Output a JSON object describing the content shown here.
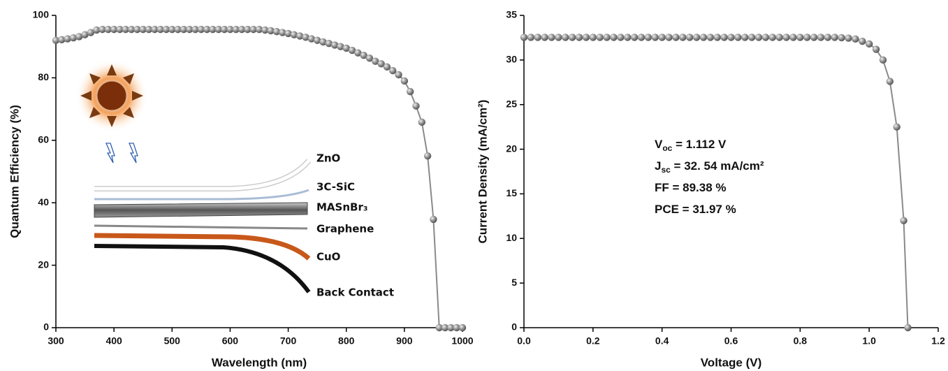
{
  "chart_data": [
    {
      "type": "line",
      "x_label": "Wavelength (nm)",
      "y_label": "Quantum Efficiency (%)",
      "color": "#8a8a8a",
      "x": [
        300,
        310,
        320,
        330,
        340,
        350,
        360,
        370,
        380,
        390,
        400,
        410,
        420,
        430,
        440,
        450,
        460,
        470,
        480,
        490,
        500,
        510,
        520,
        530,
        540,
        550,
        560,
        570,
        580,
        590,
        600,
        610,
        620,
        630,
        640,
        650,
        660,
        670,
        680,
        690,
        700,
        710,
        720,
        730,
        740,
        750,
        760,
        770,
        780,
        790,
        800,
        810,
        820,
        830,
        840,
        850,
        860,
        870,
        880,
        890,
        900,
        910,
        920,
        930,
        940,
        950,
        960,
        970,
        980,
        990,
        1000
      ],
      "values": [
        92,
        92.2,
        92.5,
        92.8,
        93.2,
        93.8,
        94.5,
        95.3,
        95.5,
        95.5,
        95.5,
        95.5,
        95.5,
        95.5,
        95.5,
        95.5,
        95.5,
        95.5,
        95.5,
        95.5,
        95.5,
        95.5,
        95.5,
        95.5,
        95.5,
        95.5,
        95.5,
        95.5,
        95.5,
        95.5,
        95.5,
        95.5,
        95.5,
        95.5,
        95.5,
        95.5,
        95.3,
        95.1,
        94.8,
        94.5,
        94.2,
        93.8,
        93.4,
        93,
        92.5,
        92,
        91.5,
        91,
        90.5,
        90,
        89.5,
        88.8,
        88,
        87.2,
        86.3,
        85.3,
        84.5,
        83.5,
        82.3,
        81,
        79,
        75.6,
        71,
        65.8,
        55,
        34.7,
        0,
        0,
        0,
        0,
        0
      ],
      "xlim": [
        300,
        1000
      ],
      "xticks": [
        300,
        400,
        500,
        600,
        700,
        800,
        900,
        1000
      ],
      "ylim": [
        0,
        100
      ],
      "yticks": [
        0,
        20,
        40,
        60,
        80,
        100
      ],
      "inset_labels": [
        "ZnO",
        "3C-SiC",
        "MASnBr₃",
        "Graphene",
        "CuO",
        "Back Contact"
      ]
    },
    {
      "type": "line",
      "x_label": "Voltage (V)",
      "y_label": "Current Density (mA/cm²)",
      "color": "#8a8a8a",
      "x": [
        0,
        0.02,
        0.04,
        0.06,
        0.08,
        0.1,
        0.12,
        0.14,
        0.16,
        0.18,
        0.2,
        0.22,
        0.24,
        0.26,
        0.28,
        0.3,
        0.32,
        0.34,
        0.36,
        0.38,
        0.4,
        0.42,
        0.44,
        0.46,
        0.48,
        0.5,
        0.52,
        0.54,
        0.56,
        0.58,
        0.6,
        0.62,
        0.64,
        0.66,
        0.68,
        0.7,
        0.72,
        0.74,
        0.76,
        0.78,
        0.8,
        0.82,
        0.84,
        0.86,
        0.88,
        0.9,
        0.92,
        0.94,
        0.96,
        0.98,
        1,
        1.02,
        1.04,
        1.06,
        1.08,
        1.1,
        1.112
      ],
      "values": [
        32.54,
        32.54,
        32.54,
        32.54,
        32.54,
        32.54,
        32.54,
        32.54,
        32.54,
        32.54,
        32.54,
        32.54,
        32.54,
        32.54,
        32.54,
        32.54,
        32.54,
        32.54,
        32.54,
        32.54,
        32.54,
        32.54,
        32.54,
        32.54,
        32.54,
        32.54,
        32.54,
        32.54,
        32.54,
        32.54,
        32.54,
        32.54,
        32.54,
        32.54,
        32.54,
        32.54,
        32.54,
        32.54,
        32.54,
        32.54,
        32.54,
        32.54,
        32.54,
        32.54,
        32.54,
        32.54,
        32.5,
        32.45,
        32.35,
        32.1,
        31.8,
        31.2,
        30,
        27.6,
        22.5,
        12,
        0
      ],
      "xlim": [
        0,
        1.2
      ],
      "xticks": [
        {
          "value": 0,
          "label": "0.0"
        },
        0.2,
        0.4,
        0.6,
        0.8,
        {
          "value": 1,
          "label": "1.0"
        },
        1.2
      ],
      "ylim": [
        0,
        35
      ],
      "yticks": [
        0,
        5,
        10,
        15,
        20,
        25,
        30,
        35
      ],
      "annotations": [
        {
          "main": "V",
          "sub": "oc",
          "rest": " = 1.112 V"
        },
        {
          "main": "J",
          "sub": "sc",
          "rest": " = 32. 54 mA/cm²"
        },
        {
          "main": "FF = 89.38 %"
        },
        {
          "main": "PCE = 31.97 %"
        }
      ]
    }
  ]
}
